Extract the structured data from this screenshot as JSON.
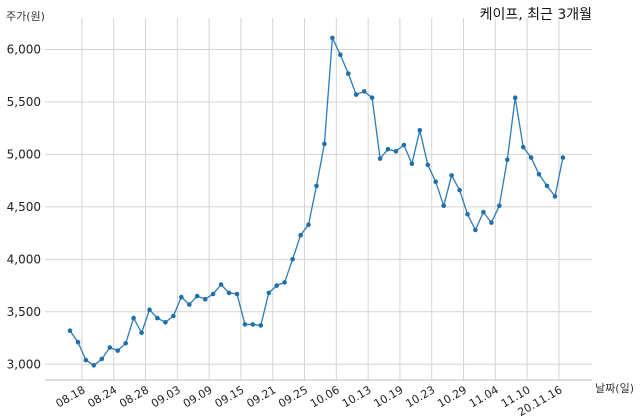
{
  "chart_data": {
    "type": "line",
    "title": "케이프, 최근 3개월",
    "ylabel": "주가(원)",
    "xlabel": "날짜(일)",
    "ylim": [
      2850,
      6300
    ],
    "y_ticks": [
      3000,
      3500,
      4000,
      4500,
      5000,
      5500,
      6000
    ],
    "y_tick_labels": [
      "3,000",
      "3,500",
      "4,000",
      "4,500",
      "5,000",
      "5,500",
      "6,000"
    ],
    "x_tick_labels": [
      "08.18",
      "08.24",
      "08.28",
      "09.03",
      "09.09",
      "09.15",
      "09.21",
      "09.25",
      "10.06",
      "10.13",
      "10.19",
      "10.23",
      "10.29",
      "11.04",
      "11.10",
      "20.11.16"
    ],
    "x_tick_index": [
      1.5,
      5.5,
      9.5,
      13.5,
      17.5,
      21.5,
      25.5,
      29.5,
      33.5,
      37.5,
      41.5,
      45.5,
      49.5,
      53.5,
      57.5,
      61.5
    ],
    "grid": true,
    "series": [
      {
        "values": [
          3320,
          3210,
          3040,
          2990,
          3050,
          3160,
          3130,
          3200,
          3440,
          3300,
          3520,
          3440,
          3400,
          3460,
          3640,
          3570,
          3650,
          3620,
          3670,
          3760,
          3680,
          3670,
          3380,
          3380,
          3370,
          3680,
          3750,
          3780,
          4000,
          4230,
          4330,
          4700,
          5100,
          6110,
          5950,
          5770,
          5570,
          5600,
          5540,
          4960,
          5050,
          5030,
          5090,
          4910,
          5230,
          4900,
          4740,
          4510,
          4800,
          4660,
          4430,
          4280,
          4450,
          4350,
          4510,
          4950,
          5540,
          5070,
          4970,
          4810,
          4700,
          4600,
          4970
        ]
      }
    ]
  }
}
